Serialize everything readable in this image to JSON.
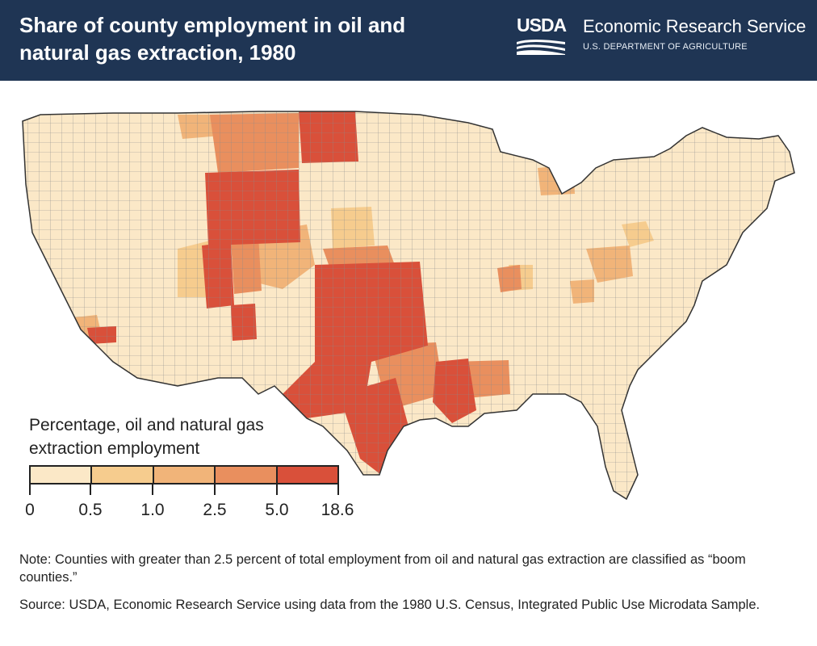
{
  "header": {
    "title": "Share of county employment in oil and natural gas extraction, 1980",
    "logo_text": "USDA",
    "agency": "Economic Research Service",
    "department": "U.S. DEPARTMENT OF AGRICULTURE",
    "background": "#1f3554"
  },
  "legend": {
    "title": "Percentage, oil and natural gas extraction employment",
    "breaks": [
      "0",
      "0.5",
      "1.0",
      "2.5",
      "5.0",
      "18.6"
    ],
    "colors": [
      "#fbe8c7",
      "#f6cc8e",
      "#f1b479",
      "#e98f5e",
      "#d9503a"
    ]
  },
  "note": "Note: Counties with greater than 2.5 percent of total employment from oil and natural gas extraction are classified as “boom counties.”",
  "source": "Source: USDA, Economic Research Service using data from the 1980 U.S. Census, Integrated Public Use Microdata Sample.",
  "map_colors": {
    "base": "#fbe8c7",
    "county_lines": "#7a7a7a",
    "state_lines": "#333333"
  },
  "map_regions": [
    {
      "name": "western-gulf-coast-texas-core",
      "class": 4
    },
    {
      "name": "louisiana-gulf",
      "class": 4
    },
    {
      "name": "wyoming",
      "class": 4
    },
    {
      "name": "north-dakota-williston",
      "class": 4
    },
    {
      "name": "western-colorado-utah-border",
      "class": 4
    },
    {
      "name": "oklahoma",
      "class": 4
    },
    {
      "name": "southeast-new-mexico",
      "class": 4
    },
    {
      "name": "southern-california-kern",
      "class": 4
    },
    {
      "name": "montana-east",
      "class": 3
    },
    {
      "name": "kansas-west",
      "class": 2
    },
    {
      "name": "mississippi-alabama-gulf",
      "class": 3
    },
    {
      "name": "east-texas",
      "class": 3
    },
    {
      "name": "colorado-northeast",
      "class": 2
    },
    {
      "name": "illinois-basin",
      "class": 3
    },
    {
      "name": "ohio-west-virginia-appalachia",
      "class": 2
    },
    {
      "name": "kentucky-east",
      "class": 2
    },
    {
      "name": "michigan-north",
      "class": 2
    },
    {
      "name": "pennsylvania-west",
      "class": 1
    },
    {
      "name": "utah-central",
      "class": 1
    },
    {
      "name": "california-central-coast",
      "class": 2
    }
  ]
}
